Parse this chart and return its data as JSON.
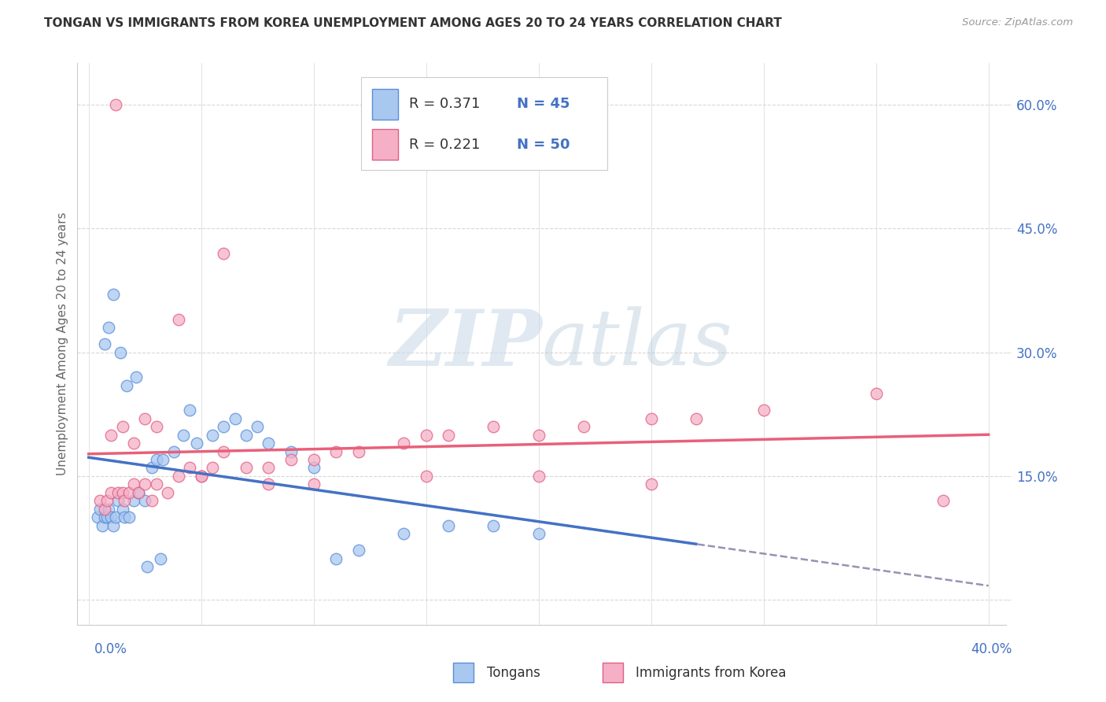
{
  "title": "TONGAN VS IMMIGRANTS FROM KOREA UNEMPLOYMENT AMONG AGES 20 TO 24 YEARS CORRELATION CHART",
  "source": "Source: ZipAtlas.com",
  "ylabel": "Unemployment Among Ages 20 to 24 years",
  "legend_label1": "Tongans",
  "legend_label2": "Immigrants from Korea",
  "R1": "0.371",
  "N1": "45",
  "R2": "0.221",
  "N2": "50",
  "xmin": 0.0,
  "xmax": 0.4,
  "ymin": -0.03,
  "ymax": 0.65,
  "yticks": [
    0.0,
    0.15,
    0.3,
    0.45,
    0.6
  ],
  "ytick_labels": [
    "",
    "15.0%",
    "30.0%",
    "45.0%",
    "60.0%"
  ],
  "color_tongan_fill": "#a8c8f0",
  "color_tongan_edge": "#5b8dd9",
  "color_korea_fill": "#f5b0c8",
  "color_korea_edge": "#e06080",
  "color_blue_line": "#4472c4",
  "color_pink_line": "#e8607a",
  "color_dashed": "#8888aa",
  "color_grid": "#d8d8d8",
  "color_axis_blue": "#4472c4",
  "color_text": "#333333",
  "color_source": "#999999",
  "watermark_color": "#dce8f5",
  "tongan_x": [
    0.004,
    0.005,
    0.006,
    0.007,
    0.008,
    0.009,
    0.01,
    0.011,
    0.012,
    0.013,
    0.015,
    0.016,
    0.018,
    0.02,
    0.022,
    0.025,
    0.028,
    0.03,
    0.033,
    0.038,
    0.042,
    0.048,
    0.055,
    0.06,
    0.065,
    0.07,
    0.075,
    0.08,
    0.09,
    0.1,
    0.11,
    0.12,
    0.14,
    0.16,
    0.18,
    0.2,
    0.007,
    0.009,
    0.011,
    0.014,
    0.017,
    0.021,
    0.026,
    0.032,
    0.045
  ],
  "tongan_y": [
    0.1,
    0.11,
    0.09,
    0.1,
    0.1,
    0.11,
    0.1,
    0.09,
    0.1,
    0.12,
    0.11,
    0.1,
    0.1,
    0.12,
    0.13,
    0.12,
    0.16,
    0.17,
    0.17,
    0.18,
    0.2,
    0.19,
    0.2,
    0.21,
    0.22,
    0.2,
    0.21,
    0.19,
    0.18,
    0.16,
    0.05,
    0.06,
    0.08,
    0.09,
    0.09,
    0.08,
    0.31,
    0.33,
    0.37,
    0.3,
    0.26,
    0.27,
    0.04,
    0.05,
    0.23
  ],
  "korea_x": [
    0.005,
    0.007,
    0.008,
    0.01,
    0.012,
    0.013,
    0.015,
    0.016,
    0.018,
    0.02,
    0.022,
    0.025,
    0.028,
    0.03,
    0.035,
    0.04,
    0.045,
    0.05,
    0.055,
    0.06,
    0.07,
    0.08,
    0.09,
    0.1,
    0.11,
    0.12,
    0.14,
    0.15,
    0.16,
    0.18,
    0.2,
    0.22,
    0.25,
    0.27,
    0.3,
    0.35,
    0.01,
    0.015,
    0.02,
    0.025,
    0.03,
    0.04,
    0.05,
    0.06,
    0.08,
    0.1,
    0.15,
    0.2,
    0.25,
    0.38
  ],
  "korea_y": [
    0.12,
    0.11,
    0.12,
    0.13,
    0.6,
    0.13,
    0.13,
    0.12,
    0.13,
    0.14,
    0.13,
    0.14,
    0.12,
    0.14,
    0.13,
    0.15,
    0.16,
    0.15,
    0.16,
    0.18,
    0.16,
    0.16,
    0.17,
    0.17,
    0.18,
    0.18,
    0.19,
    0.2,
    0.2,
    0.21,
    0.2,
    0.21,
    0.22,
    0.22,
    0.23,
    0.25,
    0.2,
    0.21,
    0.19,
    0.22,
    0.21,
    0.34,
    0.15,
    0.42,
    0.14,
    0.14,
    0.15,
    0.15,
    0.14,
    0.12
  ]
}
